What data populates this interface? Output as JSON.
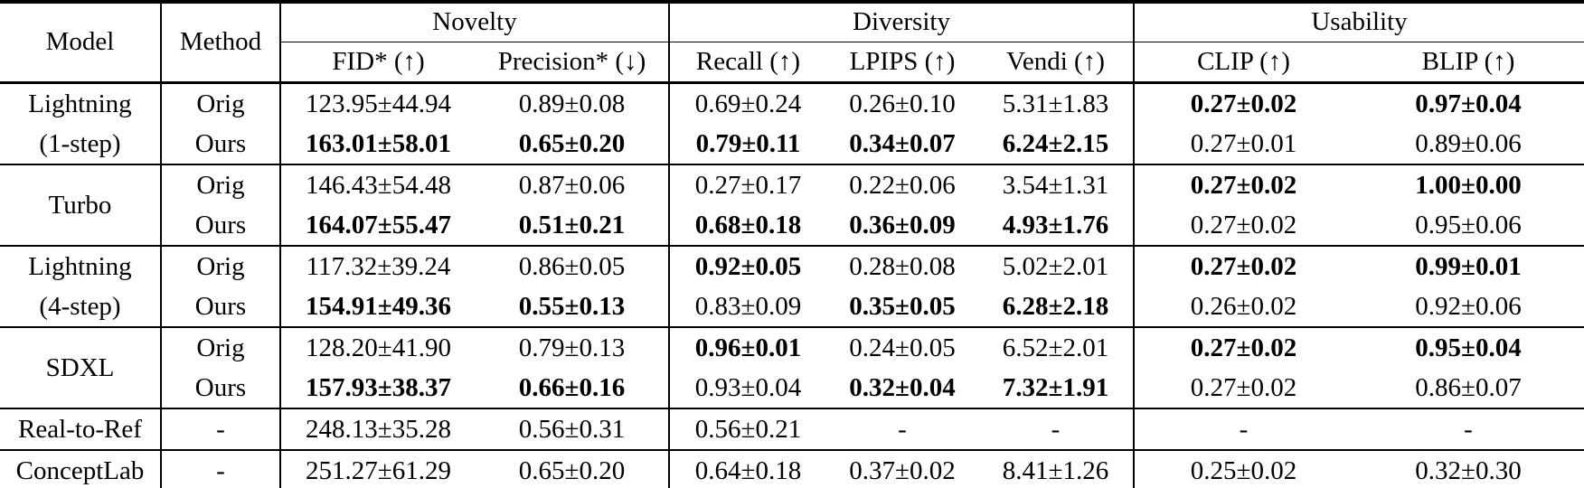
{
  "table": {
    "header": {
      "model": "Model",
      "method": "Method",
      "groups": [
        {
          "label": "Novelty",
          "span": 2
        },
        {
          "label": "Diversity",
          "span": 3
        },
        {
          "label": "Usability",
          "span": 2
        }
      ],
      "metrics": [
        "FID* (↑)",
        "Precision* (↓)",
        "Recall (↑)",
        "LPIPS (↑)",
        "Vendi (↑)",
        "CLIP (↑)",
        "BLIP (↑)"
      ]
    },
    "groups": [
      {
        "model_lines": [
          "Lightning",
          "(1-step)"
        ],
        "rows": [
          {
            "method": "Orig",
            "values": [
              {
                "text": "123.95±44.94",
                "bold": false
              },
              {
                "text": "0.89±0.08",
                "bold": false
              },
              {
                "text": "0.69±0.24",
                "bold": false
              },
              {
                "text": "0.26±0.10",
                "bold": false
              },
              {
                "text": "5.31±1.83",
                "bold": false
              },
              {
                "text": "0.27±0.02",
                "bold": true
              },
              {
                "text": "0.97±0.04",
                "bold": true
              }
            ]
          },
          {
            "method": "Ours",
            "values": [
              {
                "text": "163.01±58.01",
                "bold": true
              },
              {
                "text": "0.65±0.20",
                "bold": true
              },
              {
                "text": "0.79±0.11",
                "bold": true
              },
              {
                "text": "0.34±0.07",
                "bold": true
              },
              {
                "text": "6.24±2.15",
                "bold": true
              },
              {
                "text": "0.27±0.01",
                "bold": false
              },
              {
                "text": "0.89±0.06",
                "bold": false
              }
            ]
          }
        ]
      },
      {
        "model_lines": [
          "Turbo"
        ],
        "rows": [
          {
            "method": "Orig",
            "values": [
              {
                "text": "146.43±54.48",
                "bold": false
              },
              {
                "text": "0.87±0.06",
                "bold": false
              },
              {
                "text": "0.27±0.17",
                "bold": false
              },
              {
                "text": "0.22±0.06",
                "bold": false
              },
              {
                "text": "3.54±1.31",
                "bold": false
              },
              {
                "text": "0.27±0.02",
                "bold": true
              },
              {
                "text": "1.00±0.00",
                "bold": true
              }
            ]
          },
          {
            "method": "Ours",
            "values": [
              {
                "text": "164.07±55.47",
                "bold": true
              },
              {
                "text": "0.51±0.21",
                "bold": true
              },
              {
                "text": "0.68±0.18",
                "bold": true
              },
              {
                "text": "0.36±0.09",
                "bold": true
              },
              {
                "text": "4.93±1.76",
                "bold": true
              },
              {
                "text": "0.27±0.02",
                "bold": false
              },
              {
                "text": "0.95±0.06",
                "bold": false
              }
            ]
          }
        ]
      },
      {
        "model_lines": [
          "Lightning",
          "(4-step)"
        ],
        "rows": [
          {
            "method": "Orig",
            "values": [
              {
                "text": "117.32±39.24",
                "bold": false
              },
              {
                "text": "0.86±0.05",
                "bold": false
              },
              {
                "text": "0.92±0.05",
                "bold": true
              },
              {
                "text": "0.28±0.08",
                "bold": false
              },
              {
                "text": "5.02±2.01",
                "bold": false
              },
              {
                "text": "0.27±0.02",
                "bold": true
              },
              {
                "text": "0.99±0.01",
                "bold": true
              }
            ]
          },
          {
            "method": "Ours",
            "values": [
              {
                "text": "154.91±49.36",
                "bold": true
              },
              {
                "text": "0.55±0.13",
                "bold": true
              },
              {
                "text": "0.83±0.09",
                "bold": false
              },
              {
                "text": "0.35±0.05",
                "bold": true
              },
              {
                "text": "6.28±2.18",
                "bold": true
              },
              {
                "text": "0.26±0.02",
                "bold": false
              },
              {
                "text": "0.92±0.06",
                "bold": false
              }
            ]
          }
        ]
      },
      {
        "model_lines": [
          "SDXL"
        ],
        "rows": [
          {
            "method": "Orig",
            "values": [
              {
                "text": "128.20±41.90",
                "bold": false
              },
              {
                "text": "0.79±0.13",
                "bold": false
              },
              {
                "text": "0.96±0.01",
                "bold": true
              },
              {
                "text": "0.24±0.05",
                "bold": false
              },
              {
                "text": "6.52±2.01",
                "bold": false
              },
              {
                "text": "0.27±0.02",
                "bold": true
              },
              {
                "text": "0.95±0.04",
                "bold": true
              }
            ]
          },
          {
            "method": "Ours",
            "values": [
              {
                "text": "157.93±38.37",
                "bold": true
              },
              {
                "text": "0.66±0.16",
                "bold": true
              },
              {
                "text": "0.93±0.04",
                "bold": false
              },
              {
                "text": "0.32±0.04",
                "bold": true
              },
              {
                "text": "7.32±1.91",
                "bold": true
              },
              {
                "text": "0.27±0.02",
                "bold": false
              },
              {
                "text": "0.86±0.07",
                "bold": false
              }
            ]
          }
        ]
      },
      {
        "model_lines": [
          "Real-to-Ref"
        ],
        "rows": [
          {
            "method": "-",
            "values": [
              {
                "text": "248.13±35.28",
                "bold": false
              },
              {
                "text": "0.56±0.31",
                "bold": false
              },
              {
                "text": "0.56±0.21",
                "bold": false
              },
              {
                "text": "-",
                "bold": false
              },
              {
                "text": "-",
                "bold": false
              },
              {
                "text": "-",
                "bold": false
              },
              {
                "text": "-",
                "bold": false
              }
            ]
          }
        ]
      },
      {
        "model_lines": [
          "ConceptLab"
        ],
        "rows": [
          {
            "method": "-",
            "values": [
              {
                "text": "251.27±61.29",
                "bold": false
              },
              {
                "text": "0.65±0.20",
                "bold": false
              },
              {
                "text": "0.64±0.18",
                "bold": false
              },
              {
                "text": "0.37±0.02",
                "bold": false
              },
              {
                "text": "8.41±1.26",
                "bold": false
              },
              {
                "text": "0.25±0.02",
                "bold": false
              },
              {
                "text": "0.32±0.30",
                "bold": false
              }
            ]
          }
        ]
      }
    ]
  }
}
